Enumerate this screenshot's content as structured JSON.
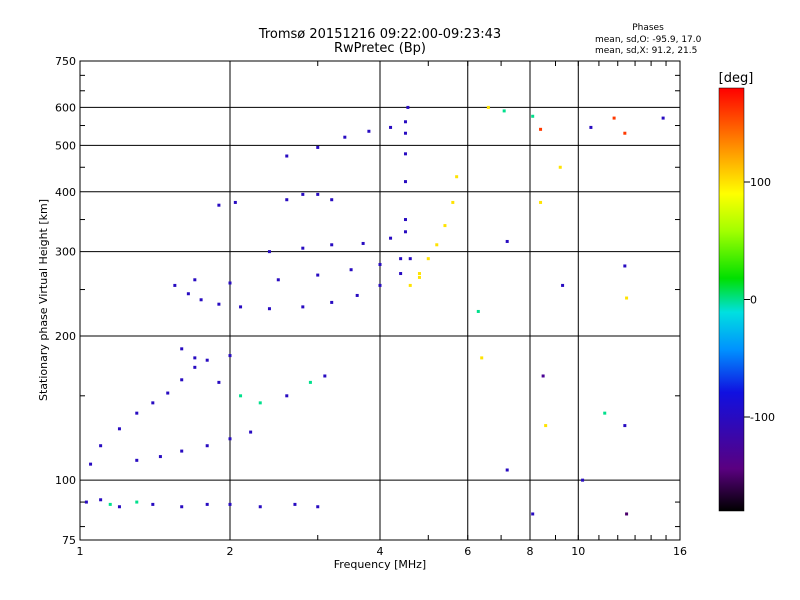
{
  "chart_data": {
    "type": "scatter",
    "title": "Tromsø 20151216 09:22:00-09:23:43",
    "subtitle": "RwPretec (Bp)",
    "xlabel": "Frequency [MHz]",
    "ylabel": "Stationary phase Virtual Height [km]",
    "x_scale": "log",
    "y_scale": "log",
    "xlim": [
      1,
      16
    ],
    "ylim": [
      75,
      750
    ],
    "x_ticks": [
      1,
      2,
      4,
      6,
      8,
      10,
      16
    ],
    "y_ticks": [
      75,
      100,
      200,
      300,
      400,
      500,
      600,
      750
    ],
    "grid": true,
    "stats": {
      "heading": "Phases",
      "line_o": "mean, sd,O: -95.9, 17.0",
      "line_x": "mean, sd,X:  91.2, 21.5"
    },
    "colorbar": {
      "label": "[deg]",
      "ticks": [
        "100",
        "0",
        "-100"
      ],
      "range": [
        -180,
        180
      ],
      "tick_values": [
        100,
        0,
        -100
      ]
    },
    "series": [
      {
        "name": "",
        "color_by": "phase",
        "points": [
          [
            1.03,
            90
          ],
          [
            1.1,
            91
          ],
          [
            1.15,
            89
          ],
          [
            1.2,
            88
          ],
          [
            1.3,
            90
          ],
          [
            1.4,
            89
          ],
          [
            1.6,
            88
          ],
          [
            1.8,
            89
          ],
          [
            2.0,
            89
          ],
          [
            2.3,
            88
          ],
          [
            2.7,
            89
          ],
          [
            3.0,
            88
          ],
          [
            1.05,
            108
          ],
          [
            1.1,
            118
          ],
          [
            1.2,
            128
          ],
          [
            1.3,
            138
          ],
          [
            1.4,
            145
          ],
          [
            1.5,
            152
          ],
          [
            1.6,
            162
          ],
          [
            1.7,
            172
          ],
          [
            1.8,
            178
          ],
          [
            2.0,
            182
          ],
          [
            1.3,
            110
          ],
          [
            1.45,
            112
          ],
          [
            1.6,
            115
          ],
          [
            1.8,
            118
          ],
          [
            2.0,
            122
          ],
          [
            2.2,
            126
          ],
          [
            1.6,
            188
          ],
          [
            1.7,
            180
          ],
          [
            1.9,
            160
          ],
          [
            2.1,
            150
          ],
          [
            2.3,
            145
          ],
          [
            2.6,
            150
          ],
          [
            2.9,
            160
          ],
          [
            3.1,
            165
          ],
          [
            1.55,
            255
          ],
          [
            1.65,
            245
          ],
          [
            1.75,
            238
          ],
          [
            1.9,
            233
          ],
          [
            2.1,
            230
          ],
          [
            2.4,
            228
          ],
          [
            2.8,
            230
          ],
          [
            3.2,
            235
          ],
          [
            3.6,
            243
          ],
          [
            4.0,
            255
          ],
          [
            4.4,
            270
          ],
          [
            4.6,
            290
          ],
          [
            1.7,
            262
          ],
          [
            2.0,
            258
          ],
          [
            2.5,
            262
          ],
          [
            3.0,
            268
          ],
          [
            3.5,
            275
          ],
          [
            4.0,
            282
          ],
          [
            4.4,
            290
          ],
          [
            2.4,
            300
          ],
          [
            2.8,
            305
          ],
          [
            3.2,
            310
          ],
          [
            3.7,
            312
          ],
          [
            4.2,
            320
          ],
          [
            4.5,
            330
          ],
          [
            2.6,
            385
          ],
          [
            2.8,
            395
          ],
          [
            3.0,
            395
          ],
          [
            3.2,
            385
          ],
          [
            1.9,
            375
          ],
          [
            2.05,
            380
          ],
          [
            2.6,
            475
          ],
          [
            3.0,
            495
          ],
          [
            3.4,
            520
          ],
          [
            3.8,
            535
          ],
          [
            4.2,
            545
          ],
          [
            4.5,
            560
          ],
          [
            4.5,
            350
          ],
          [
            4.5,
            420
          ],
          [
            4.5,
            480
          ],
          [
            4.5,
            530
          ],
          [
            4.55,
            600
          ],
          [
            4.8,
            270
          ],
          [
            5.0,
            290
          ],
          [
            5.2,
            310
          ],
          [
            5.4,
            340
          ],
          [
            5.6,
            380
          ],
          [
            5.7,
            430
          ],
          [
            4.6,
            255
          ],
          [
            4.8,
            265
          ],
          [
            6.6,
            600
          ],
          [
            7.1,
            590
          ],
          [
            6.3,
            225
          ],
          [
            6.4,
            180
          ],
          [
            7.2,
            315
          ],
          [
            7.2,
            105
          ],
          [
            8.1,
            575
          ],
          [
            8.4,
            540
          ],
          [
            8.5,
            165
          ],
          [
            8.6,
            130
          ],
          [
            8.4,
            380
          ],
          [
            9.2,
            450
          ],
          [
            10.6,
            545
          ],
          [
            11.8,
            570
          ],
          [
            12.4,
            530
          ],
          [
            12.4,
            280
          ],
          [
            12.5,
            240
          ],
          [
            12.4,
            130
          ],
          [
            12.5,
            85
          ],
          [
            14.8,
            570
          ],
          [
            8.1,
            85
          ],
          [
            9.3,
            255
          ],
          [
            10.2,
            100
          ],
          [
            11.3,
            138
          ]
        ],
        "phases": [
          -100,
          -100,
          0,
          -100,
          0,
          -100,
          -100,
          -100,
          -100,
          -100,
          -100,
          -100,
          -100,
          -100,
          -100,
          -100,
          -100,
          -100,
          -100,
          -100,
          -100,
          -100,
          -100,
          -100,
          -100,
          -100,
          -100,
          -100,
          -100,
          -100,
          -100,
          0,
          0,
          -100,
          0,
          -100,
          -100,
          -100,
          -100,
          -100,
          -100,
          -100,
          -100,
          -100,
          -100,
          -100,
          -100,
          -100,
          -100,
          -100,
          -100,
          -100,
          -100,
          -100,
          -100,
          -100,
          -100,
          -100,
          -100,
          -100,
          -100,
          -100,
          -100,
          -100,
          -100,
          -100,
          -100,
          -100,
          -100,
          -100,
          -100,
          -100,
          -100,
          -100,
          -100,
          -100,
          -100,
          -100,
          100,
          100,
          100,
          100,
          100,
          100,
          100,
          100,
          100,
          0,
          0,
          100,
          -100,
          -100,
          0,
          160,
          -130,
          100,
          100,
          100,
          -100,
          160,
          160,
          -100,
          100,
          -100,
          -150,
          -100,
          -100,
          -100,
          -100,
          0
        ]
      }
    ]
  }
}
